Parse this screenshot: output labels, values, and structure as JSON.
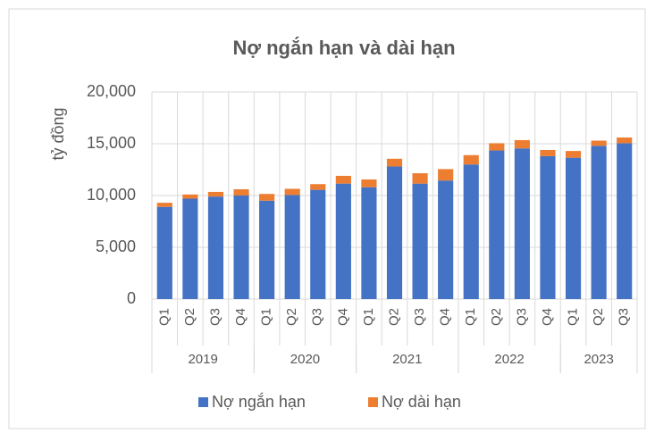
{
  "chart_data": {
    "type": "stacked_bar",
    "title": "Nợ ngắn hạn và dài hạn",
    "y_label": "tỷ đồng",
    "categories": [
      "Q1",
      "Q2",
      "Q3",
      "Q4",
      "Q1",
      "Q2",
      "Q3",
      "Q4",
      "Q1",
      "Q2",
      "Q3",
      "Q4",
      "Q1",
      "Q2",
      "Q3",
      "Q4",
      "Q1",
      "Q2",
      "Q3"
    ],
    "groups": [
      {
        "label": "2019",
        "size": 4
      },
      {
        "label": "2020",
        "size": 4
      },
      {
        "label": "2021",
        "size": 4
      },
      {
        "label": "2022",
        "size": 4
      },
      {
        "label": "2023",
        "size": 3
      }
    ],
    "series": [
      {
        "name": "Nợ ngắn hạn",
        "color": "#4472c4",
        "values": [
          8900,
          9700,
          9900,
          10000,
          9500,
          10050,
          10550,
          11150,
          10800,
          12800,
          11150,
          11450,
          13000,
          14350,
          14550,
          13800,
          13650,
          14800,
          15050
        ]
      },
      {
        "name": "Nợ dài hạn",
        "color": "#ed7d31",
        "values": [
          400,
          400,
          450,
          600,
          650,
          600,
          550,
          750,
          750,
          750,
          1000,
          1100,
          900,
          700,
          800,
          600,
          650,
          500,
          550
        ]
      }
    ],
    "ylim": [
      0,
      20000
    ],
    "yticks": [
      0,
      {
        "value": 5000,
        "label": "5,000"
      },
      {
        "value": 10000,
        "label": "10,000"
      },
      {
        "value": 15000,
        "label": "15,000"
      },
      {
        "value": 20000,
        "label": "20,000"
      }
    ],
    "grid": true,
    "legend": "bottom"
  }
}
